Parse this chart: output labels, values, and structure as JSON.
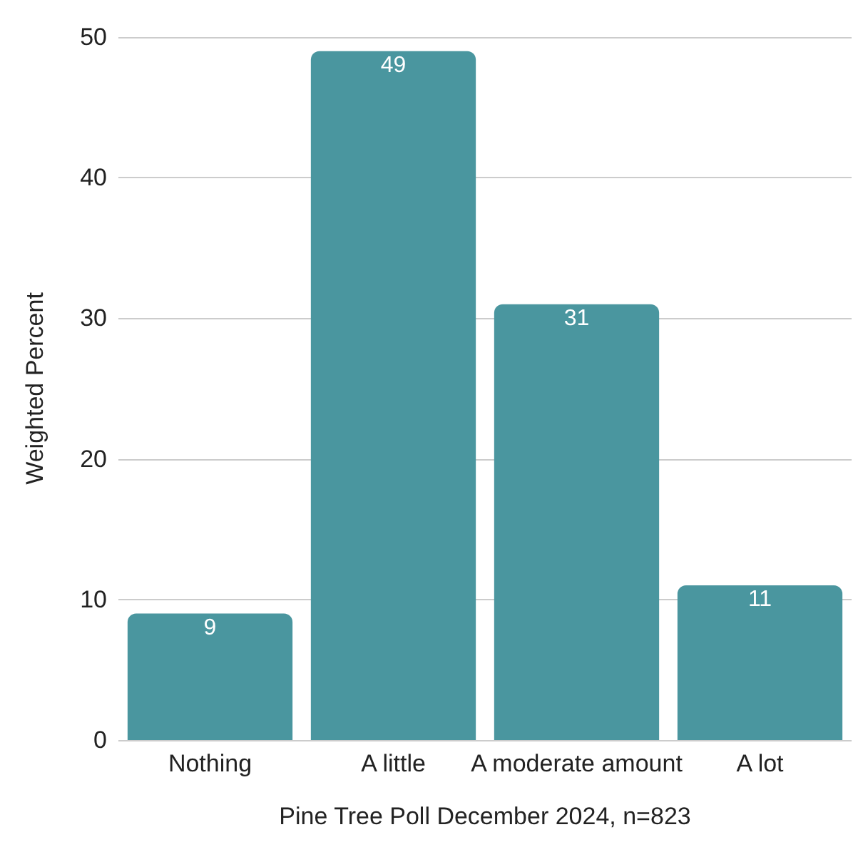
{
  "chart_data": {
    "type": "bar",
    "xlabel": "Pine Tree Poll December 2024, n=823",
    "ylabel": "Weighted Percent",
    "categories": [
      "Nothing",
      "A little",
      "A moderate amount",
      "A lot"
    ],
    "values": [
      9,
      49,
      31,
      11
    ],
    "color": "#4a969f",
    "data_labels": true,
    "ylim": [
      0,
      50
    ],
    "yticks": [
      0,
      10,
      20,
      30,
      40,
      50
    ],
    "grid": "y"
  }
}
